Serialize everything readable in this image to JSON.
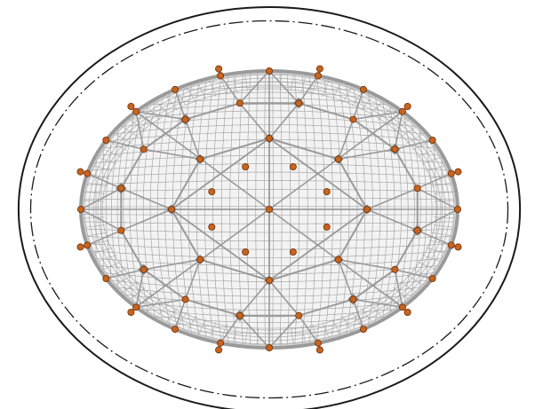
{
  "diagram": {
    "view": "top plan",
    "rings": {
      "inner_count": 8,
      "outer_count": 12,
      "apex_nodes": 1
    },
    "meridians": 16,
    "colors": {
      "background": "#ffffff",
      "boundary_line": "#1a1a1a",
      "centerline": "#1a1a1a",
      "mesh_fill": "#dcdcdc",
      "mesh_line": "#8f8f8f",
      "cable": "#9a9a9a",
      "cable_highlight": "#c8c8c8",
      "node_fill": "#c8641e",
      "node_stroke": "#6b2d08",
      "joint_plate": "#6e6e6e"
    }
  }
}
